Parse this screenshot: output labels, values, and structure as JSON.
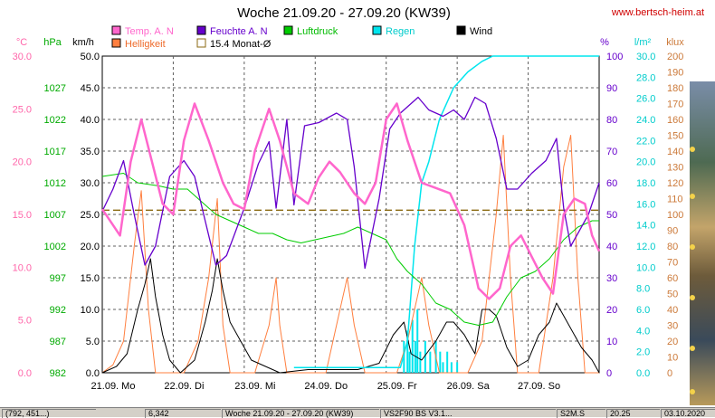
{
  "title": "Woche 21.09.20 - 27.09.20 (KW39)",
  "watermark": "www.bertsch-heim.at",
  "status_bar": [
    "(792, 451...)",
    "6,342",
    "Woche 21.09.20 - 27.09.20 (KW39)",
    "VS2F90 BS V3.1...",
    "S2M.S",
    "20.25",
    "03.10.2020"
  ],
  "chart_data": {
    "type": "line",
    "title": "Woche 21.09.20 - 27.09.20 (KW39)",
    "x_labels": [
      "21.09. Mo",
      "22.09. Di",
      "23.09. Mi",
      "24.09. Do",
      "25.09. Fr",
      "26.09. Sa",
      "27.09. So"
    ],
    "x_unit": "day (0 = 21.09. 00:00, 7 = 28.09. 00:00)",
    "legend": [
      {
        "name": "Temp. A. N",
        "color": "#ff66cc"
      },
      {
        "name": "Feuchte A. N",
        "color": "#6600cc"
      },
      {
        "name": "Luftdruck",
        "color": "#00cc00"
      },
      {
        "name": "Regen",
        "color": "#00e5ee"
      },
      {
        "name": "Wind",
        "color": "#000000"
      },
      {
        "name": "Helligkeit",
        "color": "#ff7f3f"
      },
      {
        "name": "15.4 Monat-Ø",
        "color": "#8b6a10"
      }
    ],
    "axes": [
      {
        "unit": "°C",
        "color": "#ff66aa",
        "min": 0,
        "max": 30,
        "ticks": [
          "0.0",
          "5.0",
          "10.0",
          "15.0",
          "20.0",
          "25.0",
          "30.0"
        ]
      },
      {
        "unit": "hPa",
        "color": "#00aa00",
        "min": 982,
        "max": 1032,
        "ticks": [
          "982",
          "987",
          "992",
          "997",
          "1002",
          "1007",
          "1012",
          "1017",
          "1022",
          "1027"
        ]
      },
      {
        "unit": "km/h",
        "color": "#000000",
        "min": 0,
        "max": 50,
        "ticks": [
          "0.0",
          "5.0",
          "10.0",
          "15.0",
          "20.0",
          "25.0",
          "30.0",
          "35.0",
          "40.0",
          "45.0",
          "50.0"
        ]
      },
      {
        "unit": "%",
        "color": "#6600cc",
        "min": 0,
        "max": 100,
        "ticks": [
          "0",
          "10",
          "20",
          "30",
          "40",
          "50",
          "60",
          "70",
          "80",
          "90",
          "100"
        ]
      },
      {
        "unit": "l/m²",
        "color": "#00cccc",
        "min": 0,
        "max": 30,
        "ticks": [
          "0.0",
          "2.0",
          "4.0",
          "6.0",
          "8.0",
          "10.0",
          "12.0",
          "14.0",
          "16.0",
          "18.0",
          "20.0",
          "22.0",
          "24.0",
          "26.0",
          "28.0",
          "30.0"
        ]
      },
      {
        "unit": "klux",
        "color": "#cc7a3a",
        "min": 0,
        "max": 200,
        "ticks": [
          "0",
          "10",
          "20",
          "30",
          "40",
          "50",
          "60",
          "70",
          "80",
          "90",
          "100",
          "110",
          "120",
          "130",
          "140",
          "150",
          "160",
          "170",
          "180",
          "190",
          "200"
        ]
      }
    ],
    "series": [
      {
        "name": "Temp. A. N",
        "axis": "°C",
        "points": [
          [
            0,
            15.5
          ],
          [
            0.15,
            14
          ],
          [
            0.25,
            13
          ],
          [
            0.4,
            20
          ],
          [
            0.55,
            24
          ],
          [
            0.7,
            20
          ],
          [
            0.85,
            16
          ],
          [
            1.0,
            15
          ],
          [
            1.15,
            22
          ],
          [
            1.3,
            25.5
          ],
          [
            1.5,
            22
          ],
          [
            1.7,
            18
          ],
          [
            1.85,
            16
          ],
          [
            2.0,
            15.5
          ],
          [
            2.15,
            21
          ],
          [
            2.35,
            25
          ],
          [
            2.5,
            22
          ],
          [
            2.7,
            17
          ],
          [
            2.9,
            16
          ],
          [
            3.05,
            18.5
          ],
          [
            3.2,
            20
          ],
          [
            3.35,
            19
          ],
          [
            3.55,
            17
          ],
          [
            3.7,
            16
          ],
          [
            3.85,
            18
          ],
          [
            4.0,
            24
          ],
          [
            4.15,
            25.5
          ],
          [
            4.3,
            22
          ],
          [
            4.5,
            18
          ],
          [
            4.7,
            17.5
          ],
          [
            4.9,
            17
          ],
          [
            5.1,
            14
          ],
          [
            5.3,
            8
          ],
          [
            5.45,
            7
          ],
          [
            5.6,
            8
          ],
          [
            5.75,
            12
          ],
          [
            5.9,
            13
          ],
          [
            6.05,
            11
          ],
          [
            6.2,
            9
          ],
          [
            6.35,
            7.5
          ],
          [
            6.5,
            15
          ],
          [
            6.65,
            16.5
          ],
          [
            6.8,
            16
          ],
          [
            6.9,
            13
          ],
          [
            7.0,
            11.5
          ]
        ]
      },
      {
        "name": "Feuchte A. N",
        "axis": "%",
        "points": [
          [
            0,
            51
          ],
          [
            0.15,
            58
          ],
          [
            0.3,
            67
          ],
          [
            0.45,
            50
          ],
          [
            0.6,
            34
          ],
          [
            0.75,
            40
          ],
          [
            0.95,
            62
          ],
          [
            1.15,
            67
          ],
          [
            1.3,
            62
          ],
          [
            1.45,
            48
          ],
          [
            1.6,
            34
          ],
          [
            1.75,
            37
          ],
          [
            2.0,
            52
          ],
          [
            2.2,
            66
          ],
          [
            2.35,
            73
          ],
          [
            2.45,
            52
          ],
          [
            2.6,
            80
          ],
          [
            2.7,
            53
          ],
          [
            2.85,
            78
          ],
          [
            3.05,
            79
          ],
          [
            3.3,
            82
          ],
          [
            3.45,
            80
          ],
          [
            3.55,
            65
          ],
          [
            3.7,
            33
          ],
          [
            3.9,
            55
          ],
          [
            4.05,
            77
          ],
          [
            4.2,
            82
          ],
          [
            4.45,
            87
          ],
          [
            4.6,
            83
          ],
          [
            4.8,
            81
          ],
          [
            4.95,
            83
          ],
          [
            5.1,
            80
          ],
          [
            5.25,
            87
          ],
          [
            5.4,
            85
          ],
          [
            5.55,
            74
          ],
          [
            5.7,
            58
          ],
          [
            5.85,
            58
          ],
          [
            6.05,
            63
          ],
          [
            6.25,
            67
          ],
          [
            6.4,
            74
          ],
          [
            6.5,
            52
          ],
          [
            6.6,
            40
          ],
          [
            6.7,
            44
          ],
          [
            6.85,
            50
          ],
          [
            7.0,
            60
          ]
        ]
      },
      {
        "name": "Luftdruck",
        "axis": "hPa",
        "points": [
          [
            0,
            1013
          ],
          [
            0.3,
            1013.5
          ],
          [
            0.5,
            1012
          ],
          [
            0.8,
            1011.5
          ],
          [
            1.0,
            1011
          ],
          [
            1.2,
            1011
          ],
          [
            1.4,
            1009
          ],
          [
            1.6,
            1007
          ],
          [
            1.8,
            1006
          ],
          [
            2.0,
            1005
          ],
          [
            2.2,
            1004
          ],
          [
            2.4,
            1004
          ],
          [
            2.6,
            1003
          ],
          [
            2.8,
            1002.5
          ],
          [
            3.0,
            1003
          ],
          [
            3.2,
            1003.5
          ],
          [
            3.4,
            1004
          ],
          [
            3.6,
            1005
          ],
          [
            3.8,
            1004
          ],
          [
            4.0,
            1003
          ],
          [
            4.15,
            1000
          ],
          [
            4.3,
            998
          ],
          [
            4.5,
            996
          ],
          [
            4.7,
            993
          ],
          [
            4.9,
            992
          ],
          [
            5.1,
            990
          ],
          [
            5.3,
            989.5
          ],
          [
            5.5,
            990
          ],
          [
            5.7,
            994
          ],
          [
            5.9,
            997
          ],
          [
            6.1,
            998
          ],
          [
            6.3,
            1000
          ],
          [
            6.5,
            1003
          ],
          [
            6.7,
            1005
          ],
          [
            6.9,
            1006
          ],
          [
            7.0,
            1006
          ]
        ]
      },
      {
        "name": "Regen",
        "axis": "l/m²",
        "points": [
          [
            2.7,
            0.5
          ],
          [
            4.2,
            0.5
          ],
          [
            4.3,
            3
          ],
          [
            4.4,
            12
          ],
          [
            4.5,
            18
          ],
          [
            4.6,
            20
          ],
          [
            4.75,
            24
          ],
          [
            4.95,
            27
          ],
          [
            5.15,
            28.5
          ],
          [
            5.35,
            29.5
          ],
          [
            5.5,
            30
          ],
          [
            7.0,
            30
          ]
        ]
      },
      {
        "name": "Wind",
        "axis": "km/h",
        "points": [
          [
            0,
            0
          ],
          [
            0.2,
            1
          ],
          [
            0.35,
            3
          ],
          [
            0.5,
            10
          ],
          [
            0.6,
            14
          ],
          [
            0.68,
            18
          ],
          [
            0.75,
            12
          ],
          [
            0.85,
            6
          ],
          [
            0.95,
            2
          ],
          [
            1.1,
            0
          ],
          [
            1.3,
            2
          ],
          [
            1.45,
            8
          ],
          [
            1.55,
            13
          ],
          [
            1.62,
            18
          ],
          [
            1.7,
            13
          ],
          [
            1.8,
            8
          ],
          [
            1.95,
            5
          ],
          [
            2.1,
            2
          ],
          [
            2.3,
            1
          ],
          [
            2.5,
            0
          ],
          [
            2.9,
            0.5
          ],
          [
            3.3,
            0.5
          ],
          [
            3.6,
            0.5
          ],
          [
            3.9,
            1.5
          ],
          [
            4.1,
            6
          ],
          [
            4.25,
            8
          ],
          [
            4.35,
            3
          ],
          [
            4.5,
            2
          ],
          [
            4.7,
            5
          ],
          [
            4.85,
            8
          ],
          [
            4.95,
            8
          ],
          [
            5.1,
            6
          ],
          [
            5.25,
            3
          ],
          [
            5.35,
            10
          ],
          [
            5.45,
            10
          ],
          [
            5.55,
            9
          ],
          [
            5.7,
            4
          ],
          [
            5.85,
            1
          ],
          [
            6.0,
            2
          ],
          [
            6.15,
            6
          ],
          [
            6.3,
            8
          ],
          [
            6.4,
            11
          ],
          [
            6.5,
            9
          ],
          [
            6.6,
            7
          ],
          [
            6.75,
            4
          ],
          [
            6.9,
            2
          ],
          [
            7.0,
            0
          ]
        ]
      },
      {
        "name": "Helligkeit",
        "axis": "klux",
        "points": [
          [
            0,
            0
          ],
          [
            0.15,
            5
          ],
          [
            0.3,
            20
          ],
          [
            0.45,
            80
          ],
          [
            0.55,
            115
          ],
          [
            0.65,
            40
          ],
          [
            0.75,
            0
          ],
          [
            1.15,
            0
          ],
          [
            1.35,
            20
          ],
          [
            1.5,
            60
          ],
          [
            1.62,
            110
          ],
          [
            1.7,
            30
          ],
          [
            1.8,
            0
          ],
          [
            2.15,
            0
          ],
          [
            2.35,
            30
          ],
          [
            2.45,
            60
          ],
          [
            2.5,
            30
          ],
          [
            2.6,
            0
          ],
          [
            3.15,
            0
          ],
          [
            3.35,
            40
          ],
          [
            3.45,
            60
          ],
          [
            3.55,
            30
          ],
          [
            3.7,
            0
          ],
          [
            4.15,
            0
          ],
          [
            4.3,
            20
          ],
          [
            4.5,
            60
          ],
          [
            4.6,
            30
          ],
          [
            4.75,
            0
          ],
          [
            5.15,
            0
          ],
          [
            5.35,
            20
          ],
          [
            5.55,
            100
          ],
          [
            5.65,
            150
          ],
          [
            5.75,
            60
          ],
          [
            5.85,
            0
          ],
          [
            6.15,
            0
          ],
          [
            6.35,
            60
          ],
          [
            6.5,
            130
          ],
          [
            6.6,
            150
          ],
          [
            6.7,
            60
          ],
          [
            6.8,
            0
          ],
          [
            7.0,
            0
          ]
        ]
      },
      {
        "name": "15.4 Monat-Ø",
        "axis": "°C",
        "points": [
          [
            0,
            15.4
          ],
          [
            7.0,
            15.4
          ]
        ]
      }
    ],
    "rain_bars": [
      [
        4.25,
        3
      ],
      [
        4.3,
        4
      ],
      [
        4.33,
        2
      ],
      [
        4.37,
        5
      ],
      [
        4.41,
        3
      ],
      [
        4.44,
        6
      ],
      [
        4.48,
        2
      ],
      [
        4.55,
        3
      ],
      [
        4.62,
        2
      ],
      [
        4.7,
        3
      ],
      [
        4.76,
        2
      ],
      [
        4.8,
        1
      ],
      [
        4.86,
        2
      ],
      [
        4.92,
        1
      ],
      [
        5.0,
        1
      ]
    ],
    "grid": "dashed"
  }
}
